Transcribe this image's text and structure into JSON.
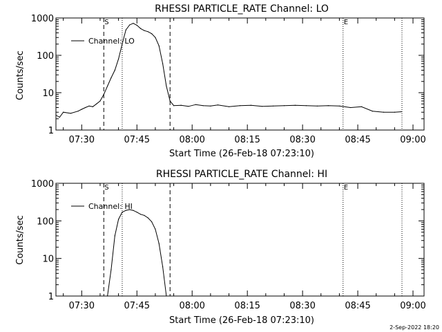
{
  "colors": {
    "background": "#ffffff",
    "ink": "#000000"
  },
  "footer": {
    "timestamp": "2-Sep-2022 18:20"
  },
  "chart_data": [
    {
      "type": "line",
      "title": "RHESSI PARTICLE_RATE Channel: LO",
      "xlabel": "Start Time (26-Feb-18 07:23:10)",
      "ylabel": "Counts/sec",
      "yscale": "log",
      "ylim": [
        1,
        1000
      ],
      "xlim": [
        "07:23",
        "09:03"
      ],
      "x_ticks": [
        "07:30",
        "07:45",
        "08:00",
        "08:15",
        "08:30",
        "08:45",
        "09:00"
      ],
      "y_ticks": [
        "1",
        "10",
        "100",
        "1000"
      ],
      "legend": {
        "position": "top-left",
        "entries": [
          "Channel: LO"
        ]
      },
      "grid": false,
      "markers": [
        {
          "time": "07:36",
          "style": "dashed",
          "label": "S"
        },
        {
          "time": "07:41",
          "style": "dotted",
          "label": ""
        },
        {
          "time": "07:54",
          "style": "dashed",
          "label": ""
        },
        {
          "time": "08:41",
          "style": "dotted",
          "label": "E"
        },
        {
          "time": "08:57",
          "style": "dotted",
          "label": ""
        }
      ],
      "series": [
        {
          "name": "Channel: LO",
          "x": [
            "07:23",
            "07:24",
            "07:25",
            "07:27",
            "07:29",
            "07:30",
            "07:31",
            "07:32",
            "07:33",
            "07:34",
            "07:35",
            "07:36",
            "07:37",
            "07:38",
            "07:39",
            "07:40",
            "07:41",
            "07:42",
            "07:43",
            "07:44",
            "07:45",
            "07:46",
            "07:47",
            "07:48",
            "07:49",
            "07:50",
            "07:51",
            "07:52",
            "07:53",
            "07:54",
            "07:55",
            "07:57",
            "07:59",
            "08:01",
            "08:03",
            "08:05",
            "08:07",
            "08:10",
            "08:13",
            "08:16",
            "08:19",
            "08:22",
            "08:25",
            "08:28",
            "08:31",
            "08:34",
            "08:37",
            "08:40",
            "08:43",
            "08:46",
            "08:49",
            "08:52",
            "08:55",
            "08:57"
          ],
          "y": [
            2.5,
            2.2,
            3.0,
            2.8,
            3.2,
            3.6,
            4.0,
            4.4,
            4.2,
            5.0,
            6.0,
            9.0,
            15,
            25,
            40,
            80,
            200,
            480,
            650,
            720,
            640,
            520,
            460,
            430,
            380,
            300,
            180,
            60,
            15,
            6,
            4.5,
            4.6,
            4.3,
            4.8,
            4.5,
            4.4,
            4.7,
            4.2,
            4.5,
            4.6,
            4.3,
            4.4,
            4.5,
            4.6,
            4.5,
            4.4,
            4.5,
            4.4,
            4.0,
            4.2,
            3.2,
            3.0,
            3.0,
            3.1
          ]
        }
      ]
    },
    {
      "type": "line",
      "title": "RHESSI PARTICLE_RATE Channel: HI",
      "xlabel": "Start Time (26-Feb-18 07:23:10)",
      "ylabel": "Counts/sec",
      "yscale": "log",
      "ylim": [
        1,
        1000
      ],
      "xlim": [
        "07:23",
        "09:03"
      ],
      "x_ticks": [
        "07:30",
        "07:45",
        "08:00",
        "08:15",
        "08:30",
        "08:45",
        "09:00"
      ],
      "y_ticks": [
        "1",
        "10",
        "100",
        "1000"
      ],
      "legend": {
        "position": "top-left",
        "entries": [
          "Channel: HI"
        ]
      },
      "grid": false,
      "markers": [
        {
          "time": "07:36",
          "style": "dashed",
          "label": "S"
        },
        {
          "time": "07:41",
          "style": "dotted",
          "label": ""
        },
        {
          "time": "07:54",
          "style": "dashed",
          "label": ""
        },
        {
          "time": "08:41",
          "style": "dotted",
          "label": "E"
        },
        {
          "time": "08:57",
          "style": "dotted",
          "label": ""
        }
      ],
      "series": [
        {
          "name": "Channel: HI",
          "x": [
            "07:37",
            "07:38",
            "07:39",
            "07:40",
            "07:41",
            "07:42",
            "07:43",
            "07:44",
            "07:45",
            "07:46",
            "07:47",
            "07:48",
            "07:49",
            "07:50",
            "07:51",
            "07:52",
            "07:53"
          ],
          "y": [
            1.0,
            5.0,
            40,
            110,
            170,
            190,
            200,
            190,
            170,
            150,
            140,
            120,
            95,
            60,
            25,
            6,
            1.0
          ]
        }
      ]
    }
  ]
}
